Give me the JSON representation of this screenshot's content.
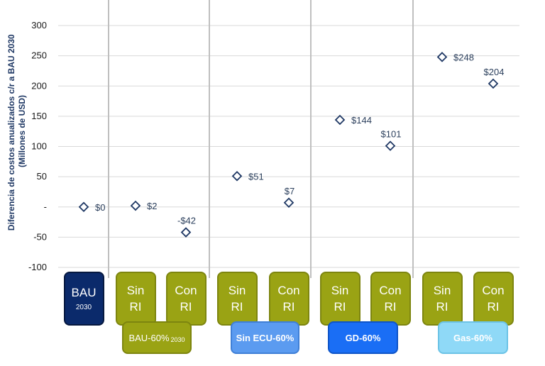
{
  "chart_data": {
    "type": "scatter",
    "ylabel": "Diferencia de costos  anualizados c/r a BAU 2030 (Millones de USD)",
    "ylim": [
      -100,
      300
    ],
    "yticks": [
      -100,
      -50,
      0,
      50,
      100,
      150,
      200,
      250,
      300
    ],
    "ytick_labels": [
      "-100",
      "-50",
      "-",
      "50",
      "100",
      "150",
      "200",
      "250",
      "300"
    ],
    "grid": true,
    "marker": "diamond-open",
    "points": [
      {
        "value": 0,
        "label": "$0"
      },
      {
        "value": 2,
        "label": "$2"
      },
      {
        "value": -42,
        "label": "-$42"
      },
      {
        "value": 51,
        "label": "$51"
      },
      {
        "value": 7,
        "label": "$7"
      },
      {
        "value": 144,
        "label": "$144"
      },
      {
        "value": 101,
        "label": "$101"
      },
      {
        "value": 248,
        "label": "$248"
      },
      {
        "value": 204,
        "label": "$204"
      }
    ],
    "scenarios": [
      {
        "line1": "BAU",
        "line2": "2030",
        "color": "#0b2a6b"
      },
      {
        "line1": "Sin",
        "line2": "RI",
        "color": "#9aa314"
      },
      {
        "line1": "Con",
        "line2": "RI",
        "color": "#9aa314"
      },
      {
        "line1": "Sin",
        "line2": "RI",
        "color": "#9aa314"
      },
      {
        "line1": "Con",
        "line2": "RI",
        "color": "#9aa314"
      },
      {
        "line1": "Sin",
        "line2": "RI",
        "color": "#9aa314"
      },
      {
        "line1": "Con",
        "line2": "RI",
        "color": "#9aa314"
      },
      {
        "line1": "Sin",
        "line2": "RI",
        "color": "#9aa314"
      },
      {
        "line1": "Con",
        "line2": "RI",
        "color": "#9aa314"
      }
    ],
    "groups": [
      {
        "label": "BAU-60%",
        "sub": "2030",
        "color": "#9aa314"
      },
      {
        "label": "Sin ECU-60%",
        "sub": "",
        "color": "#5b9bf0"
      },
      {
        "label": "GD-60%",
        "sub": "",
        "color": "#1a6ef5"
      },
      {
        "label": "Gas-60%",
        "sub": "",
        "color": "#8fd9f7"
      }
    ],
    "colors": {
      "marker": "#1f3864",
      "grid": "#d9d9d9",
      "separator": "#bfbfbf"
    }
  }
}
